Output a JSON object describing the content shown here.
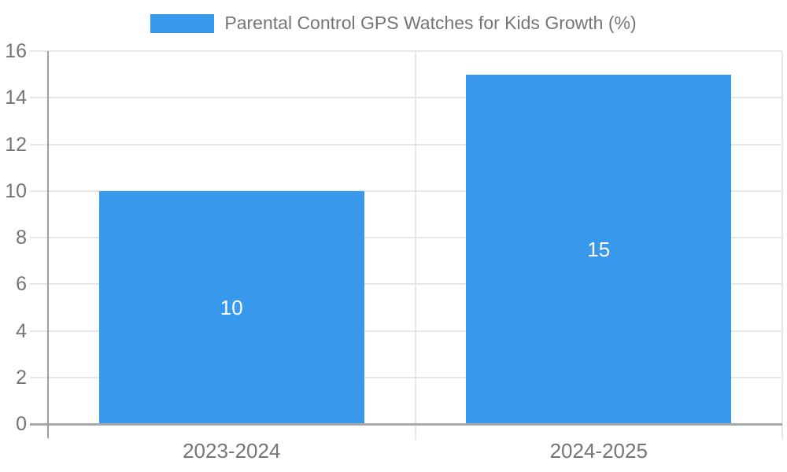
{
  "chart_data": {
    "type": "bar",
    "title": "Parental Control GPS Watches for Kids Growth (%)",
    "categories": [
      "2023-2024",
      "2024-2025"
    ],
    "series": [
      {
        "name": "Parental Control GPS Watches for Kids Growth (%)",
        "color": "#3898EC",
        "values": [
          10,
          15
        ]
      }
    ],
    "data_labels_shown": true,
    "xlabel": "",
    "ylabel": "",
    "ylim": [
      0,
      16
    ],
    "yticks": [
      0,
      2,
      4,
      6,
      8,
      10,
      12,
      14,
      16
    ],
    "grid": "horizontal-on",
    "legend_position": "top-center",
    "colors": {
      "bar": "#3898EC",
      "axis_label_text": "#757575",
      "data_label_text": "#FFFFFF",
      "gridline": "#E6E6E6",
      "baseline": "#A8A8A8",
      "yaxis_line": "#9E9E9E",
      "background": "#FFFFFF"
    }
  }
}
